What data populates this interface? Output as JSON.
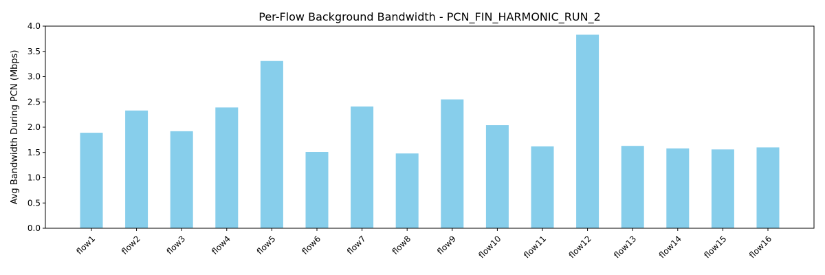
{
  "chart_data": {
    "type": "bar",
    "title": "Per-Flow Background Bandwidth - PCN_FIN_HARMONIC_RUN_2",
    "xlabel": "",
    "ylabel": "Avg Bandwidth During PCN (Mbps)",
    "categories": [
      "flow1",
      "flow2",
      "flow3",
      "flow4",
      "flow5",
      "flow6",
      "flow7",
      "flow8",
      "flow9",
      "flow10",
      "flow11",
      "flow12",
      "flow13",
      "flow14",
      "flow15",
      "flow16"
    ],
    "values": [
      1.89,
      2.33,
      1.92,
      2.39,
      3.31,
      1.51,
      2.41,
      1.48,
      2.55,
      2.04,
      1.62,
      3.83,
      1.63,
      1.58,
      1.56,
      1.6
    ],
    "ylim": [
      0,
      4.0
    ],
    "yticks": [
      "0.0",
      "0.5",
      "1.0",
      "1.5",
      "2.0",
      "2.5",
      "3.0",
      "3.5",
      "4.0"
    ],
    "bar_color": "#87CEEB",
    "grid": false,
    "legend": "none"
  }
}
